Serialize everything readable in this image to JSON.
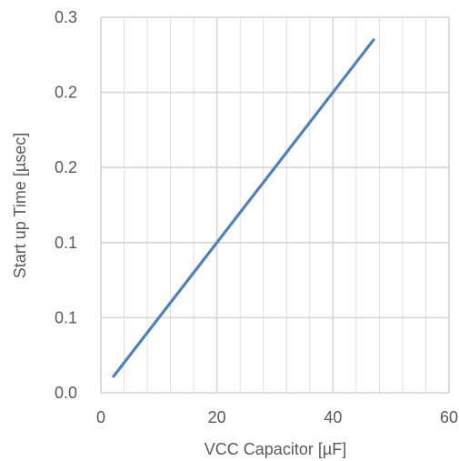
{
  "chart_data": {
    "type": "line",
    "title": "",
    "xlabel": "VCC Capacitor  [µF]",
    "ylabel": "Start up Time [µsec]",
    "xlim": [
      0,
      60
    ],
    "ylim": [
      0,
      0.25
    ],
    "x_ticks": [
      0,
      20,
      40,
      60
    ],
    "x_tick_labels": [
      "0",
      "20",
      "40",
      "60"
    ],
    "y_ticks": [
      0,
      0.05,
      0.1,
      0.15,
      0.2,
      0.25
    ],
    "y_tick_labels": [
      "0.0",
      "0.1",
      "0.1",
      "0.2",
      "0.2",
      "0.3"
    ],
    "x_minor_step": 4,
    "grid": true,
    "legend": "none",
    "colors": {
      "line": "#4f81bd",
      "grid": "#d9d9d9",
      "text": "#595959"
    },
    "series": [
      {
        "x": [
          2.2,
          47
        ],
        "y": [
          0.011,
          0.235
        ]
      }
    ]
  }
}
